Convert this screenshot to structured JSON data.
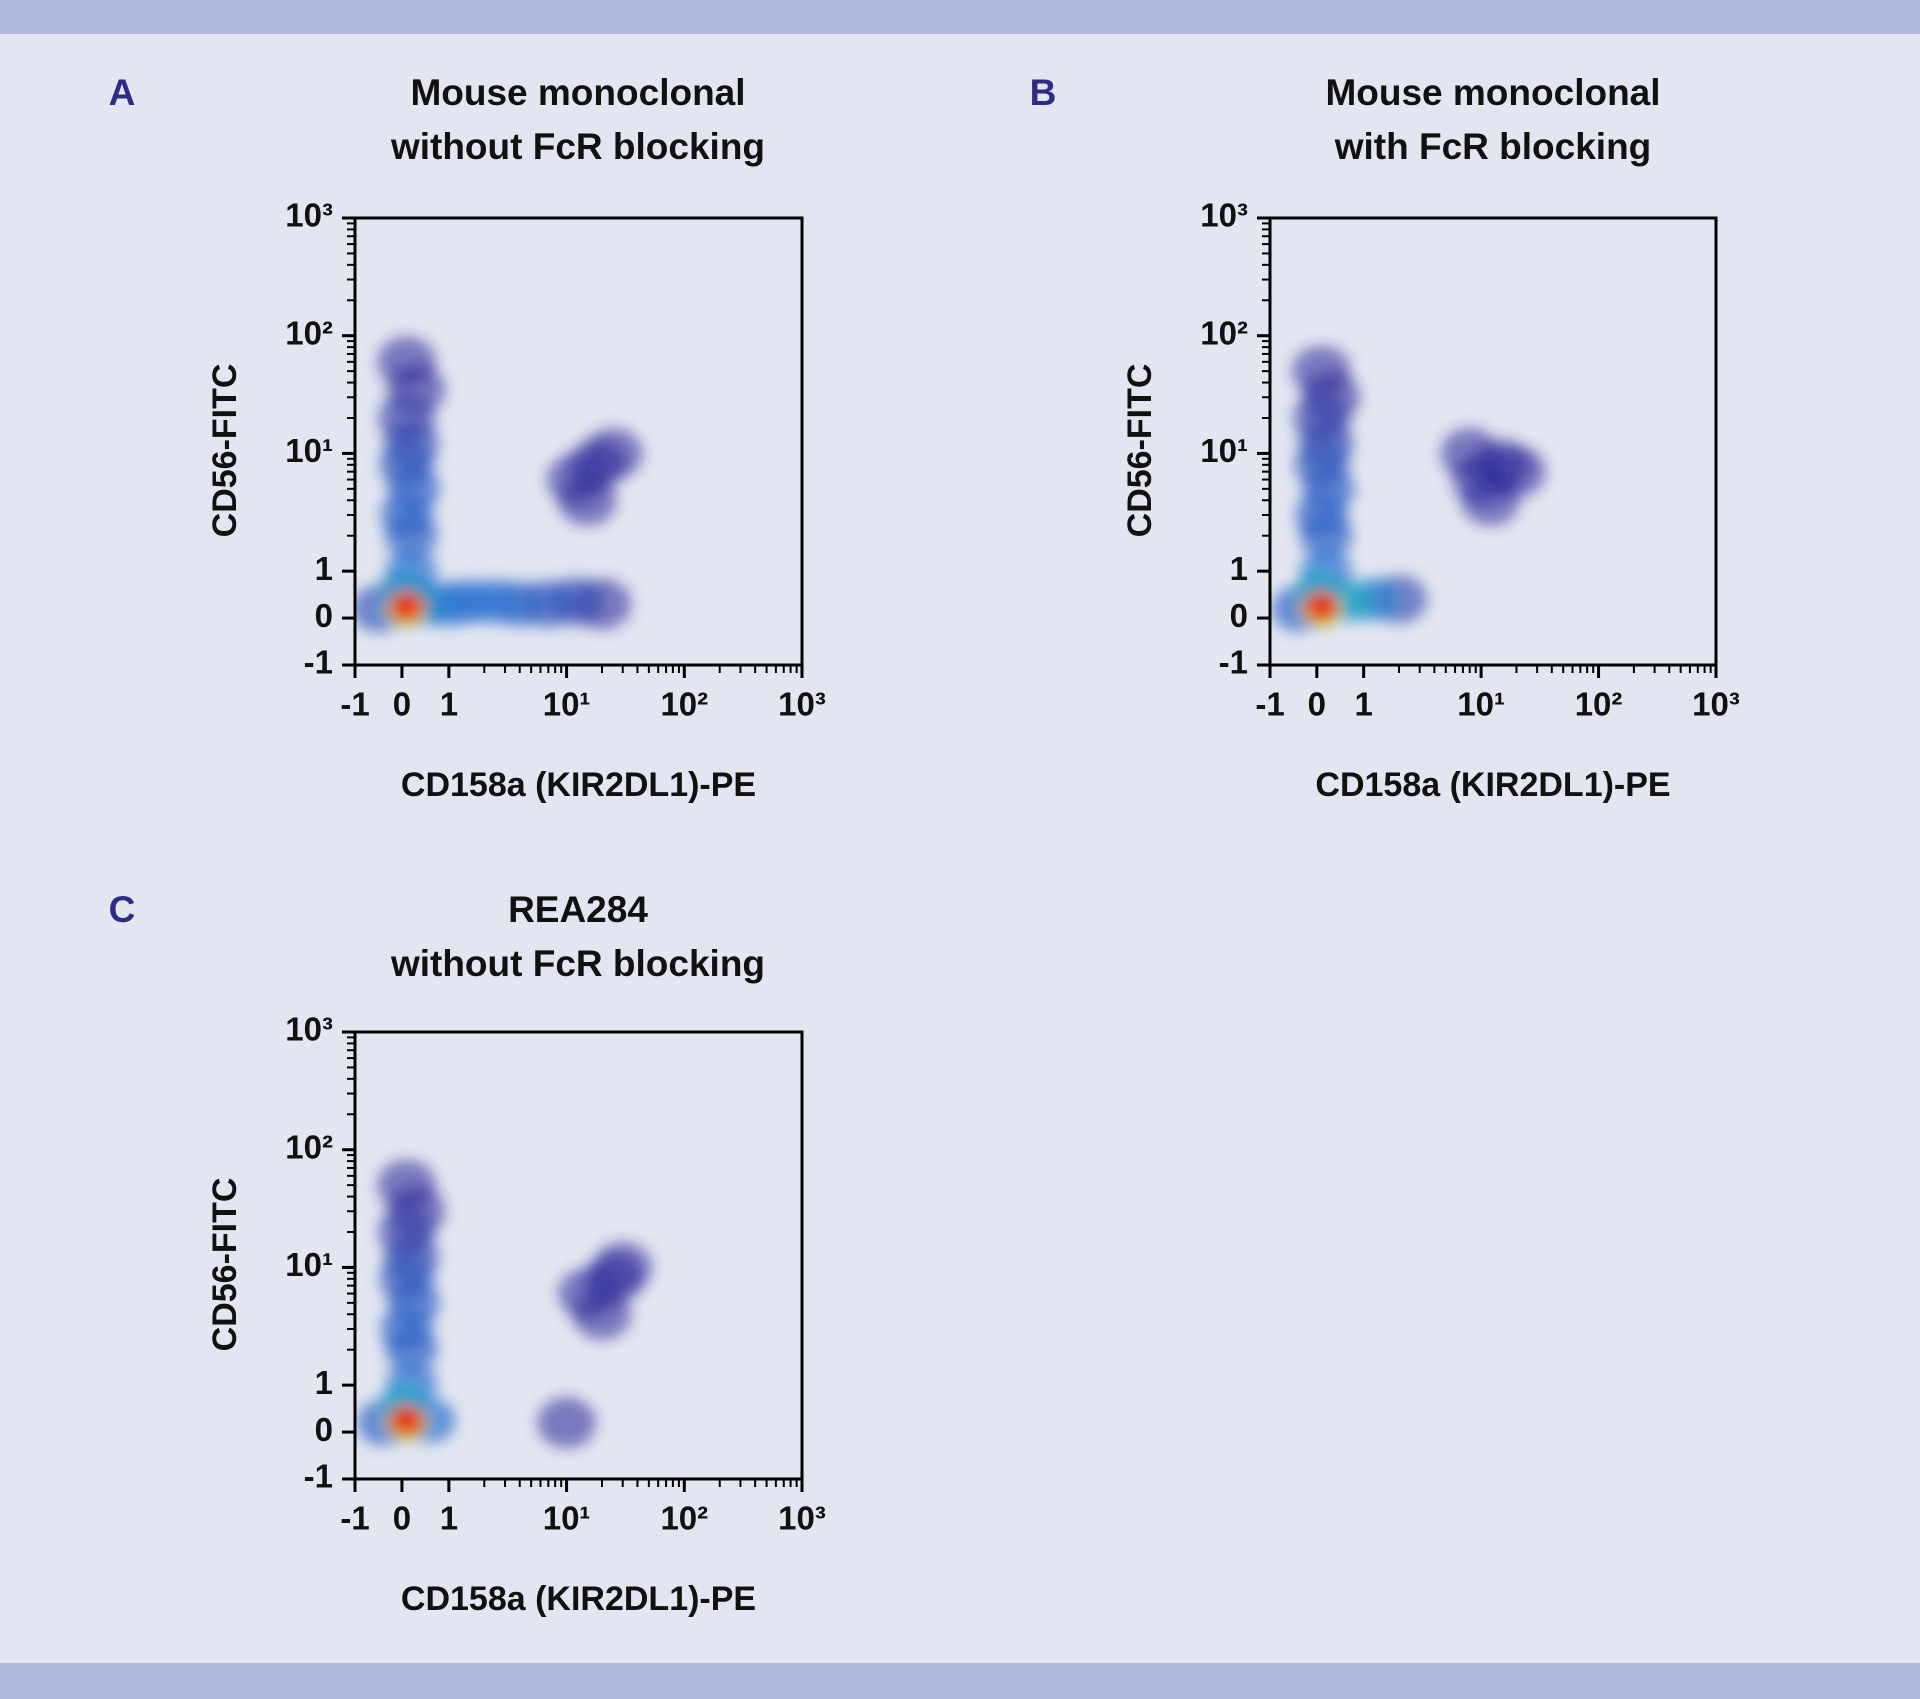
{
  "chart_data": [
    {
      "type": "scatter",
      "panel_label": "A",
      "title": [
        "Mouse monoclonal",
        "without FcR blocking"
      ],
      "xlabel": "CD158a (KIR2DL1)-PE",
      "ylabel": "CD56-FITC",
      "xscale": "biexponential",
      "yscale": "biexponential",
      "xlim": [
        -1,
        1000
      ],
      "ylim": [
        -1,
        1000
      ],
      "xticks": [
        -1,
        0,
        1,
        {
          "value": 10,
          "label": "10¹"
        },
        {
          "value": 100,
          "label": "10²"
        },
        {
          "value": 1000,
          "label": "10³"
        }
      ],
      "yticks": [
        -1,
        0,
        1,
        {
          "value": 10,
          "label": "10¹"
        },
        {
          "value": 100,
          "label": "10²"
        },
        {
          "value": 1000,
          "label": "10³"
        }
      ],
      "minor_ticks": [
        2,
        3,
        4,
        5,
        6,
        7,
        8,
        9,
        20,
        30,
        40,
        50,
        60,
        70,
        80,
        90,
        200,
        300,
        400,
        500,
        600,
        700,
        800,
        900
      ],
      "x": [
        12,
        18,
        15,
        25,
        0.1,
        0.3,
        0.2,
        0.1,
        20,
        -0.5,
        12,
        7,
        4,
        2.5,
        1.5,
        1,
        0.6,
        0.2,
        0.1,
        0.25,
        0.1,
        0.2,
        0.05,
        0.1,
        0.1,
        0.1
      ],
      "values": [
        6,
        8,
        4,
        10,
        60,
        35,
        12,
        20,
        0.3,
        0.2,
        0.35,
        0.3,
        0.3,
        0.35,
        0.35,
        0.3,
        0.3,
        2,
        3,
        5,
        8,
        1,
        0.6,
        0.2,
        0.2,
        0.25
      ],
      "density": [
        0.05,
        0.05,
        0.05,
        0.05,
        0.05,
        0.05,
        0.15,
        0.1,
        0.05,
        0.2,
        0.15,
        0.2,
        0.25,
        0.3,
        0.3,
        0.3,
        0.35,
        0.25,
        0.25,
        0.25,
        0.2,
        0.3,
        0.4,
        0.6,
        0.85,
        1
      ]
    },
    {
      "type": "scatter",
      "panel_label": "B",
      "title": [
        "Mouse monoclonal",
        "with FcR blocking"
      ],
      "xlabel": "CD158a (KIR2DL1)-PE",
      "ylabel": "CD56-FITC",
      "xscale": "biexponential",
      "yscale": "biexponential",
      "xlim": [
        -1,
        1000
      ],
      "ylim": [
        -1,
        1000
      ],
      "xticks": [
        -1,
        0,
        1,
        {
          "value": 10,
          "label": "10¹"
        },
        {
          "value": 100,
          "label": "10²"
        },
        {
          "value": 1000,
          "label": "10³"
        }
      ],
      "yticks": [
        -1,
        0,
        1,
        {
          "value": 10,
          "label": "10¹"
        },
        {
          "value": 100,
          "label": "10²"
        },
        {
          "value": 1000,
          "label": "10³"
        }
      ],
      "minor_ticks": [
        2,
        3,
        4,
        5,
        6,
        7,
        8,
        9,
        20,
        30,
        40,
        50,
        60,
        70,
        80,
        90,
        200,
        300,
        400,
        500,
        600,
        700,
        800,
        900
      ],
      "x": [
        10,
        15,
        12,
        20,
        8,
        0.1,
        0.3,
        0.2,
        0.1,
        -0.4,
        2,
        1.2,
        0.7,
        0.2,
        0.1,
        0.25,
        0.1,
        0.2,
        0.05,
        0.1,
        0.1,
        0.1
      ],
      "values": [
        6,
        8,
        4,
        7,
        10,
        50,
        30,
        12,
        20,
        0.2,
        0.4,
        0.4,
        0.35,
        2,
        3,
        5,
        8,
        1,
        0.6,
        0.2,
        0.2,
        0.25
      ],
      "density": [
        0.05,
        0.05,
        0.05,
        0.05,
        0.05,
        0.05,
        0.05,
        0.15,
        0.1,
        0.25,
        0.15,
        0.35,
        0.45,
        0.25,
        0.25,
        0.25,
        0.2,
        0.3,
        0.45,
        0.65,
        0.85,
        1
      ]
    },
    {
      "type": "scatter",
      "panel_label": "C",
      "title": [
        "REA284",
        "without FcR blocking"
      ],
      "xlabel": "CD158a (KIR2DL1)-PE",
      "ylabel": "CD56-FITC",
      "xscale": "biexponential",
      "yscale": "biexponential",
      "xlim": [
        -1,
        1000
      ],
      "ylim": [
        -1,
        1000
      ],
      "xticks": [
        -1,
        0,
        1,
        {
          "value": 10,
          "label": "10¹"
        },
        {
          "value": 100,
          "label": "10²"
        },
        {
          "value": 1000,
          "label": "10³"
        }
      ],
      "yticks": [
        -1,
        0,
        1,
        {
          "value": 10,
          "label": "10¹"
        },
        {
          "value": 100,
          "label": "10²"
        },
        {
          "value": 1000,
          "label": "10³"
        }
      ],
      "minor_ticks": [
        2,
        3,
        4,
        5,
        6,
        7,
        8,
        9,
        20,
        30,
        40,
        50,
        60,
        70,
        80,
        90,
        200,
        300,
        400,
        500,
        600,
        700,
        800,
        900
      ],
      "x": [
        15,
        25,
        20,
        30,
        10,
        0.1,
        0.3,
        0.2,
        0.1,
        -0.4,
        0.6,
        0.2,
        0.1,
        0.25,
        0.1,
        0.2,
        0.05,
        0.1,
        0.1,
        0.1
      ],
      "values": [
        6,
        8,
        4,
        10,
        0.2,
        50,
        30,
        12,
        20,
        0.2,
        0.25,
        2,
        3,
        5,
        8,
        1,
        0.6,
        0.2,
        0.2,
        0.25
      ],
      "density": [
        0.05,
        0.05,
        0.05,
        0.05,
        0.05,
        0.05,
        0.05,
        0.15,
        0.1,
        0.25,
        0.3,
        0.25,
        0.25,
        0.25,
        0.2,
        0.3,
        0.45,
        0.65,
        0.85,
        1
      ]
    }
  ]
}
